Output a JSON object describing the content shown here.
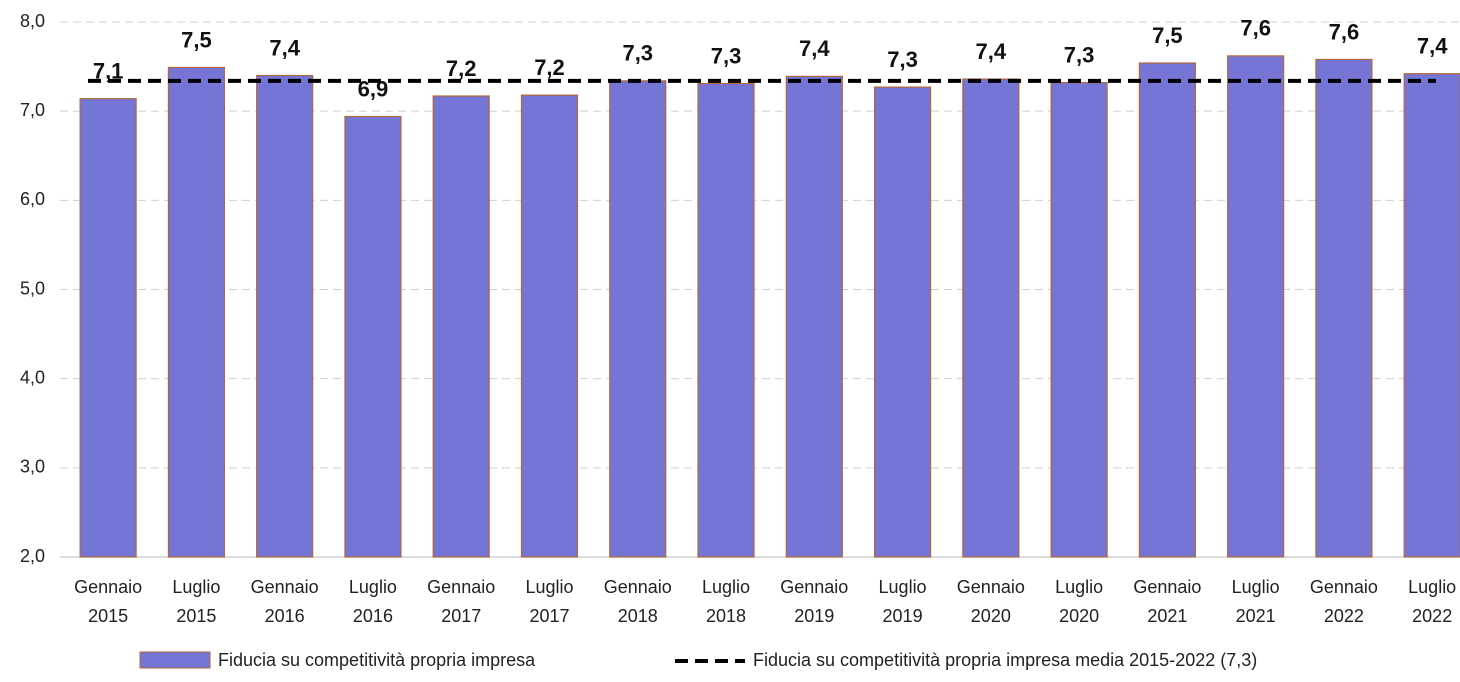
{
  "chart_data": {
    "type": "bar",
    "categories": [
      [
        "Gennaio",
        "2015"
      ],
      [
        "Luglio",
        "2015"
      ],
      [
        "Gennaio",
        "2016"
      ],
      [
        "Luglio",
        "2016"
      ],
      [
        "Gennaio",
        "2017"
      ],
      [
        "Luglio",
        "2017"
      ],
      [
        "Gennaio",
        "2018"
      ],
      [
        "Luglio",
        "2018"
      ],
      [
        "Gennaio",
        "2019"
      ],
      [
        "Luglio",
        "2019"
      ],
      [
        "Gennaio",
        "2020"
      ],
      [
        "Luglio",
        "2020"
      ],
      [
        "Gennaio",
        "2021"
      ],
      [
        "Luglio",
        "2021"
      ],
      [
        "Gennaio",
        "2022"
      ],
      [
        "Luglio",
        "2022"
      ]
    ],
    "series": [
      {
        "name": "Fiducia su competitività propria impresa",
        "color": "#7575d6",
        "edge": "#b0683a",
        "values": [
          7.14,
          7.49,
          7.4,
          6.94,
          7.17,
          7.18,
          7.34,
          7.31,
          7.39,
          7.27,
          7.36,
          7.32,
          7.54,
          7.62,
          7.58,
          7.42
        ],
        "value_labels": [
          "7,1",
          "7,5",
          "7,4",
          "6,9",
          "7,2",
          "7,2",
          "7,3",
          "7,3",
          "7,4",
          "7,3",
          "7,4",
          "7,3",
          "7,5",
          "7,6",
          "7,6",
          "7,4"
        ]
      }
    ],
    "reference_line": {
      "name": "Fiducia su competitività propria impresa media 2015-2022 (7,3)",
      "value": 7.34,
      "color": "#000000",
      "style": "dashed"
    },
    "ylim": [
      2,
      8
    ],
    "yticks": [
      {
        "value": 2,
        "label": "2,0"
      },
      {
        "value": 3,
        "label": "3,0"
      },
      {
        "value": 4,
        "label": "4,0"
      },
      {
        "value": 5,
        "label": "5,0"
      },
      {
        "value": 6,
        "label": "6,0"
      },
      {
        "value": 7,
        "label": "7,0"
      },
      {
        "value": 8,
        "label": "8,0"
      }
    ],
    "grid": true,
    "legend": "bottom"
  }
}
